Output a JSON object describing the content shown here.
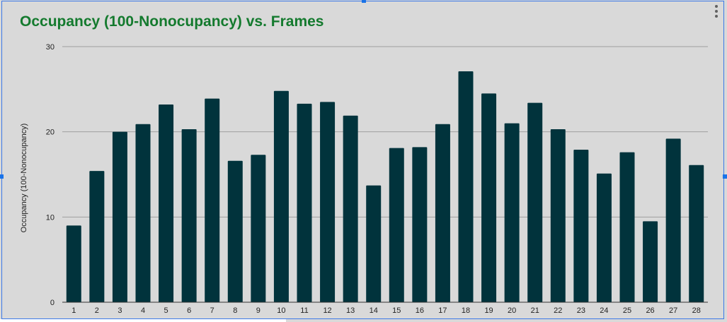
{
  "chart_data": {
    "type": "bar",
    "title": "Occupancy (100-Nonocupancy) vs. Frames",
    "xlabel": "",
    "ylabel": "Occupancy (100-Nonocupancy)",
    "ylim": [
      0,
      30
    ],
    "yticks": [
      0,
      10,
      20,
      30
    ],
    "categories": [
      "1",
      "2",
      "3",
      "4",
      "5",
      "6",
      "7",
      "8",
      "9",
      "10",
      "11",
      "12",
      "13",
      "14",
      "15",
      "16",
      "17",
      "18",
      "19",
      "20",
      "21",
      "22",
      "23",
      "24",
      "25",
      "26",
      "27",
      "28"
    ],
    "values": [
      9.0,
      15.4,
      20.0,
      20.9,
      23.2,
      20.3,
      23.9,
      16.6,
      17.3,
      24.8,
      23.3,
      23.5,
      21.9,
      13.7,
      18.1,
      18.2,
      20.9,
      27.1,
      24.5,
      21.0,
      23.4,
      20.3,
      17.9,
      15.1,
      17.6,
      9.5,
      19.2,
      16.1
    ],
    "bar_color": "#01333c",
    "title_color": "#147a2e",
    "grid": true,
    "legend": "none"
  }
}
